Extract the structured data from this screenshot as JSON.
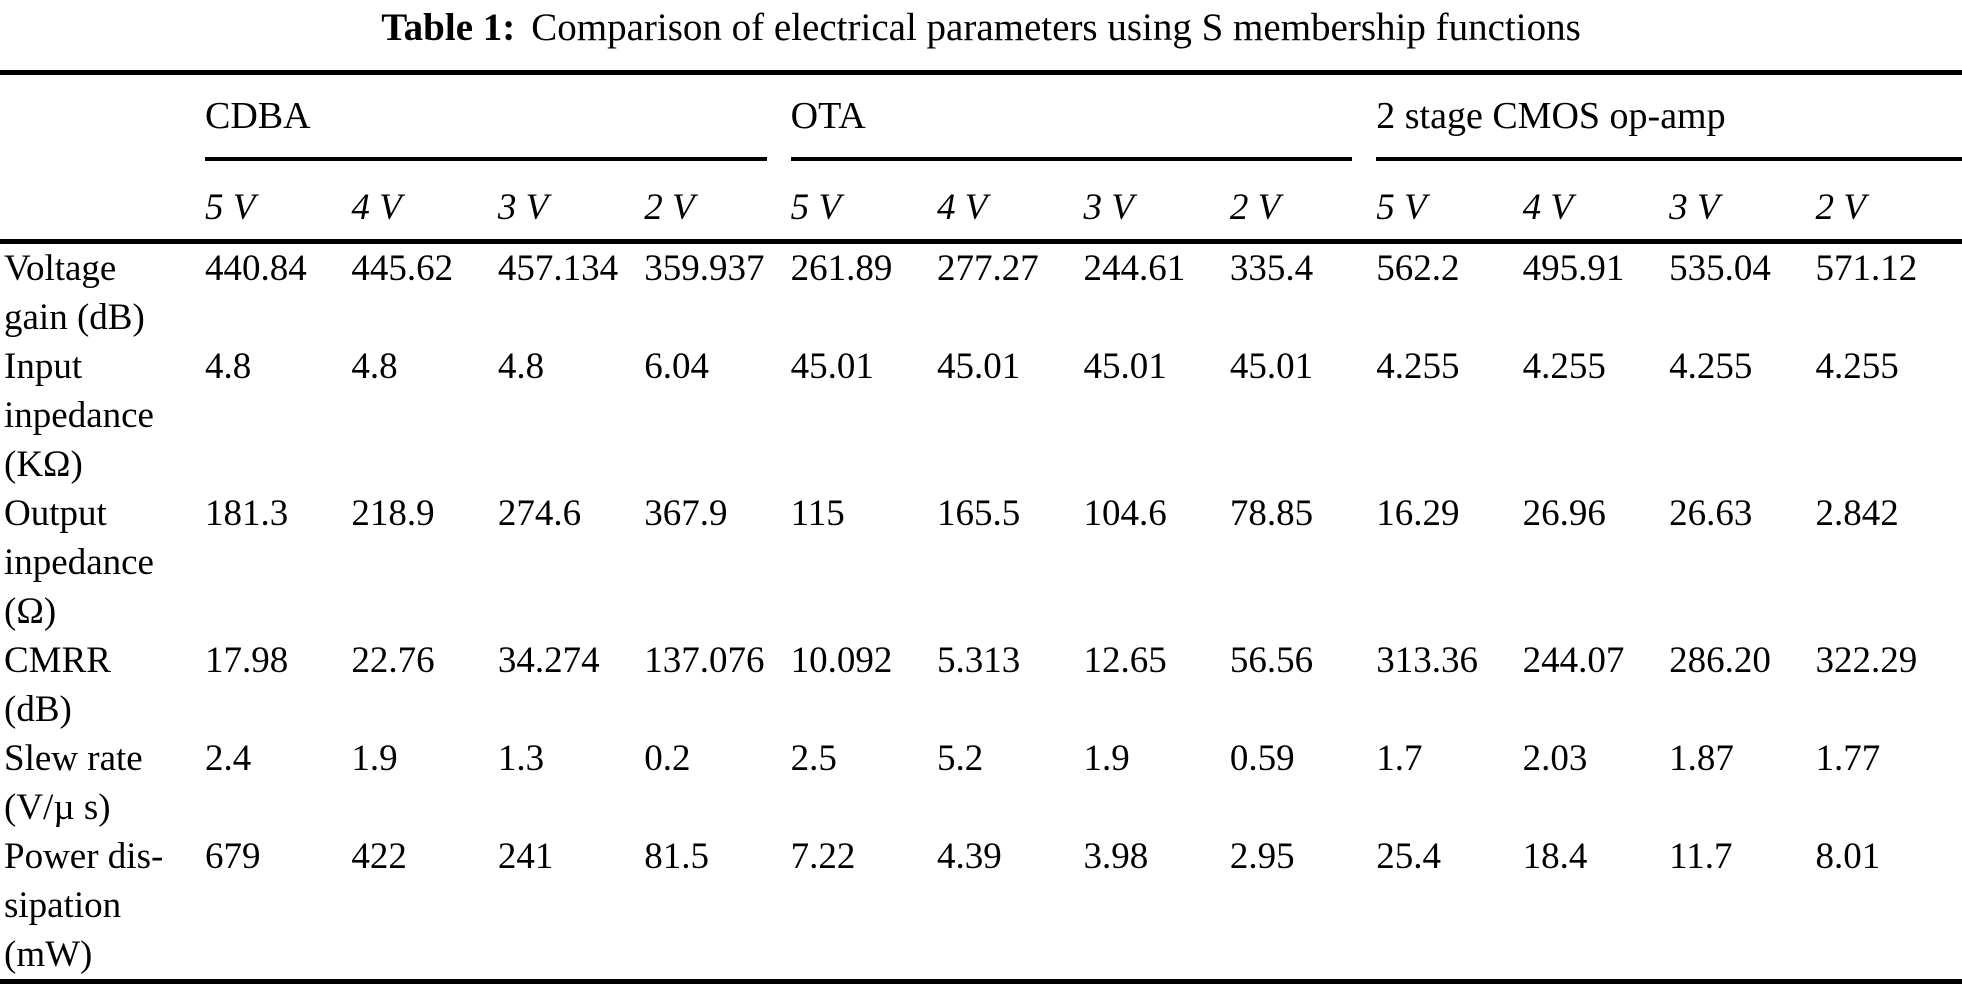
{
  "caption": {
    "label": "Table 1:",
    "text": "Comparison of electrical parameters using S membership functions"
  },
  "table": {
    "groups": [
      {
        "label": "CDBA"
      },
      {
        "label": "OTA"
      },
      {
        "label": "2 stage CMOS op-amp"
      }
    ],
    "supply_headers": [
      "5 V",
      "4 V",
      "3 V",
      "2 V",
      "5 V",
      "4 V",
      "3 V",
      "2 V",
      "5 V",
      "4 V",
      "3 V",
      "2 V"
    ],
    "rows": [
      {
        "id": "voltage-gain",
        "label": "Voltage\ngain (dB)",
        "values": [
          "440.84",
          "445.62",
          "457.134",
          "359.937",
          "261.89",
          "277.27",
          "244.61",
          "335.4",
          "562.2",
          "495.91",
          "535.04",
          "571.12"
        ]
      },
      {
        "id": "input-impedance",
        "label": "Input\ninpedance\n(KΩ)",
        "values": [
          "4.8",
          "4.8",
          "4.8",
          "6.04",
          "45.01",
          "45.01",
          "45.01",
          "45.01",
          "4.255",
          "4.255",
          "4.255",
          "4.255"
        ]
      },
      {
        "id": "output-impedance",
        "label": "Output\ninpedance\n(Ω)",
        "values": [
          "181.3",
          "218.9",
          "274.6",
          "367.9",
          "115",
          "165.5",
          "104.6",
          "78.85",
          "16.29",
          "26.96",
          "26.63",
          "2.842"
        ]
      },
      {
        "id": "cmrr",
        "label": "CMRR\n(dB)",
        "values": [
          "17.98",
          "22.76",
          "34.274",
          "137.076",
          "10.092",
          "5.313",
          "12.65",
          "56.56",
          "313.36",
          "244.07",
          "286.20",
          "322.29"
        ]
      },
      {
        "id": "slew-rate",
        "label": "Slew rate\n(V/µ s)",
        "values": [
          "2.4",
          "1.9",
          "1.3",
          "0.2",
          "2.5",
          "5.2",
          "1.9",
          "0.59",
          "1.7",
          "2.03",
          "1.87",
          "1.77"
        ]
      },
      {
        "id": "power-dissipation",
        "label": "Power dis-\nsipation\n(mW)",
        "values": [
          "679",
          "422",
          "241",
          "81.5",
          "7.22",
          "4.39",
          "3.98",
          "2.95",
          "25.4",
          "18.4",
          "11.7",
          "8.01"
        ]
      }
    ]
  }
}
